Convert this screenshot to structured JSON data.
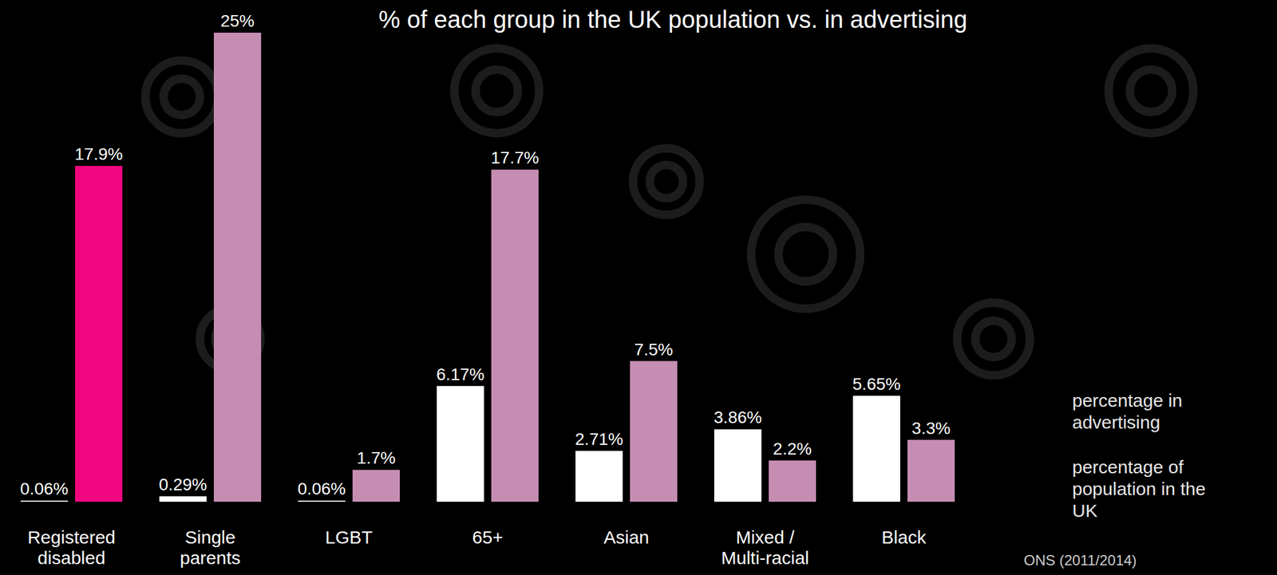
{
  "chart_data": {
    "type": "bar",
    "title": "% of each group in the UK population vs. in advertising",
    "categories": [
      "Registered disabled",
      "Single parents",
      "LGBT",
      "65+",
      "Asian",
      "Mixed / Multi-racial",
      "Black"
    ],
    "series": [
      {
        "name": "percentage in advertising",
        "color": "#ffffff",
        "values": [
          0.06,
          0.29,
          0.06,
          6.17,
          2.71,
          3.86,
          5.65
        ],
        "value_labels": [
          "0.06%",
          "0.29%",
          "0.06%",
          "6.17%",
          "2.71%",
          "3.86%",
          "5.65%"
        ]
      },
      {
        "name": "percentage of population in the UK",
        "color": "#c68db3",
        "colors": [
          "#f2067f",
          "#c68db3",
          "#c68db3",
          "#c68db3",
          "#c68db3",
          "#c68db3",
          "#c68db3"
        ],
        "values": [
          17.9,
          25,
          1.7,
          17.7,
          7.5,
          2.2,
          3.3
        ],
        "value_labels": [
          "17.9%",
          "25%",
          "1.7%",
          "17.7%",
          "7.5%",
          "2.2%",
          "3.3%"
        ]
      }
    ],
    "ylim": [
      0,
      25
    ],
    "data_labels": true,
    "tick_labels": "x",
    "legend": "right",
    "source": "ONS (2011/2014)"
  }
}
